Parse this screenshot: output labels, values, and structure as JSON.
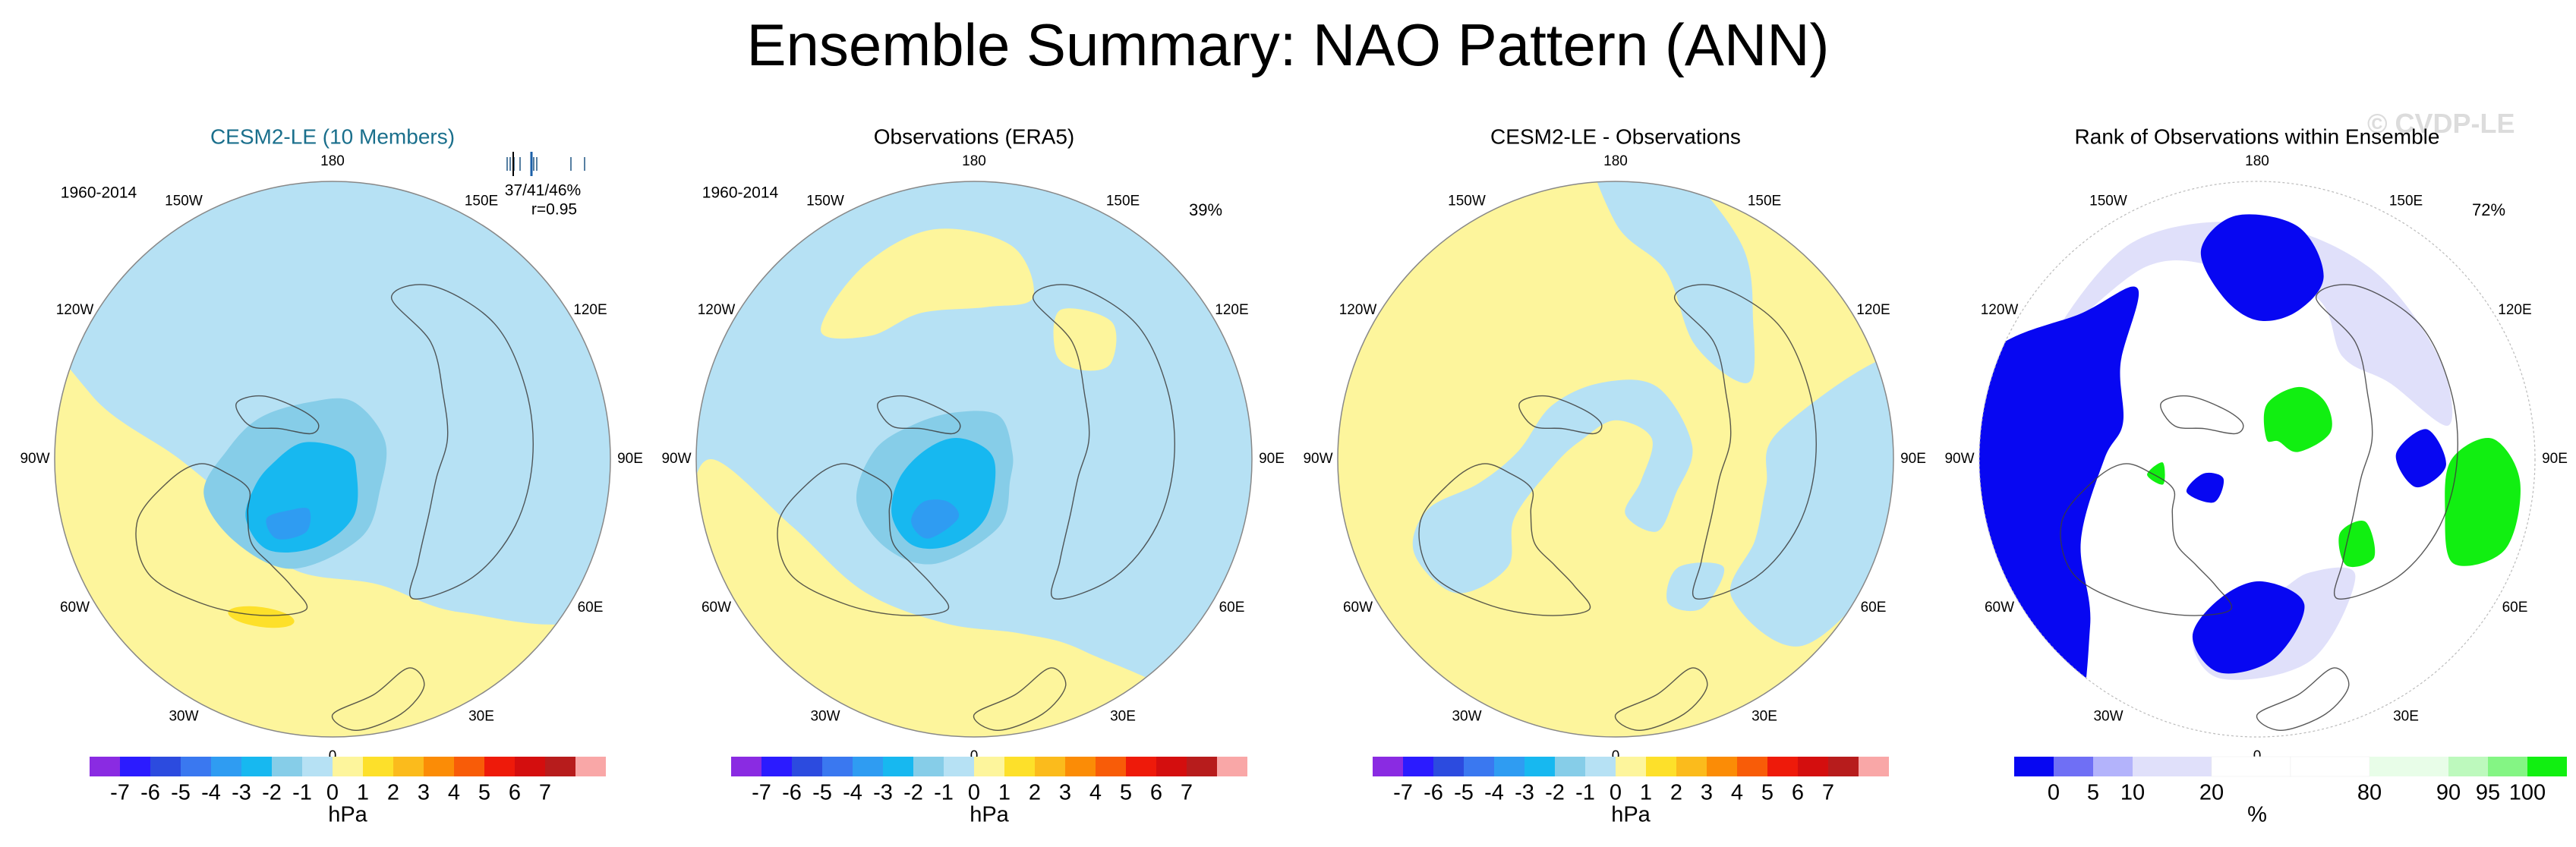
{
  "title": "Ensemble Summary: NAO Pattern (ANN)",
  "watermark": "© CVDP-LE",
  "colors": {
    "hpa_scale": [
      "#8a2be2",
      "#2b1bff",
      "#2c4bdf",
      "#3a78f0",
      "#2f9cf2",
      "#17b8f0",
      "#86cde8",
      "#b6e1f4",
      "#fdf59c",
      "#fde02a",
      "#fbbb1c",
      "#fb8c06",
      "#f85c08",
      "#ee1a0a",
      "#d40e0e",
      "#b71c1c",
      "#f9a7a7"
    ],
    "rank_scale": [
      "#0707f2",
      "#6f6ff5",
      "#b3b3fb",
      "#e0e0fa",
      "#ffffff",
      "#ffffff",
      "#e8fde8",
      "#bdf9bd",
      "#84f584",
      "#11ef11"
    ],
    "coast": "#3c3c3c",
    "grid_label": "#000000",
    "subtitle_blue": "#1a6f8c"
  },
  "panels": [
    {
      "title": "CESM2-LE (10 Members)",
      "title_color": "#1a6f8c",
      "period": "1960-2014",
      "stats": "37/41/46%",
      "corr": "r=0.95",
      "pct": ""
    },
    {
      "title": "Observations (ERA5)",
      "title_color": "#000000",
      "period": "1960-2014",
      "stats": "",
      "corr": "",
      "pct": "39%"
    },
    {
      "title": "CESM2-LE - Observations",
      "title_color": "#000000",
      "period": "",
      "stats": "",
      "corr": "",
      "pct": ""
    },
    {
      "title": "Rank of Observations within Ensemble",
      "title_color": "#000000",
      "period": "",
      "stats": "",
      "corr": "",
      "pct": "72%"
    }
  ],
  "longitudes": [
    "180",
    "150E",
    "120E",
    "90E",
    "60E",
    "30E",
    "0",
    "30W",
    "60W",
    "90W",
    "120W",
    "150W"
  ],
  "hpa_colorbar": {
    "labels": [
      "-7",
      "-6",
      "-5",
      "-4",
      "-3",
      "-2",
      "-1",
      "0",
      "1",
      "2",
      "3",
      "4",
      "5",
      "6",
      "7"
    ],
    "unit": "hPa"
  },
  "rank_colorbar": {
    "labels": [
      "0",
      "5",
      "10",
      "20",
      "80",
      "90",
      "95",
      "100"
    ],
    "unit": "%"
  },
  "chart_data": [
    {
      "type": "heatmap",
      "title": "CESM2-LE (10 Members)",
      "projection": "north-polar-stereographic",
      "period": "1960-2014",
      "variable": "NAO Pattern (ANN)",
      "units": "hPa",
      "color_levels": [
        -7,
        -6,
        -5,
        -4,
        -3,
        -2,
        -1,
        0,
        1,
        2,
        3,
        4,
        5,
        6,
        7
      ],
      "ensemble_pct_explained": "37/41/46%",
      "pattern_correlation": "r=0.95",
      "features": {
        "icelandic_low_min": -3.5,
        "azores_high_max": 2.5
      }
    },
    {
      "type": "heatmap",
      "title": "Observations (ERA5)",
      "projection": "north-polar-stereographic",
      "period": "1960-2014",
      "units": "hPa",
      "pct_explained": "39%",
      "features": {
        "icelandic_low_min": -4
      }
    },
    {
      "type": "heatmap",
      "title": "CESM2-LE - Observations",
      "projection": "north-polar-stereographic",
      "units": "hPa",
      "range": [
        -1,
        1
      ]
    },
    {
      "type": "heatmap",
      "title": "Rank of Observations within Ensemble",
      "projection": "north-polar-stereographic",
      "units": "%",
      "color_levels": [
        0,
        5,
        10,
        20,
        80,
        90,
        95,
        100
      ],
      "pct_area": "72%"
    }
  ]
}
